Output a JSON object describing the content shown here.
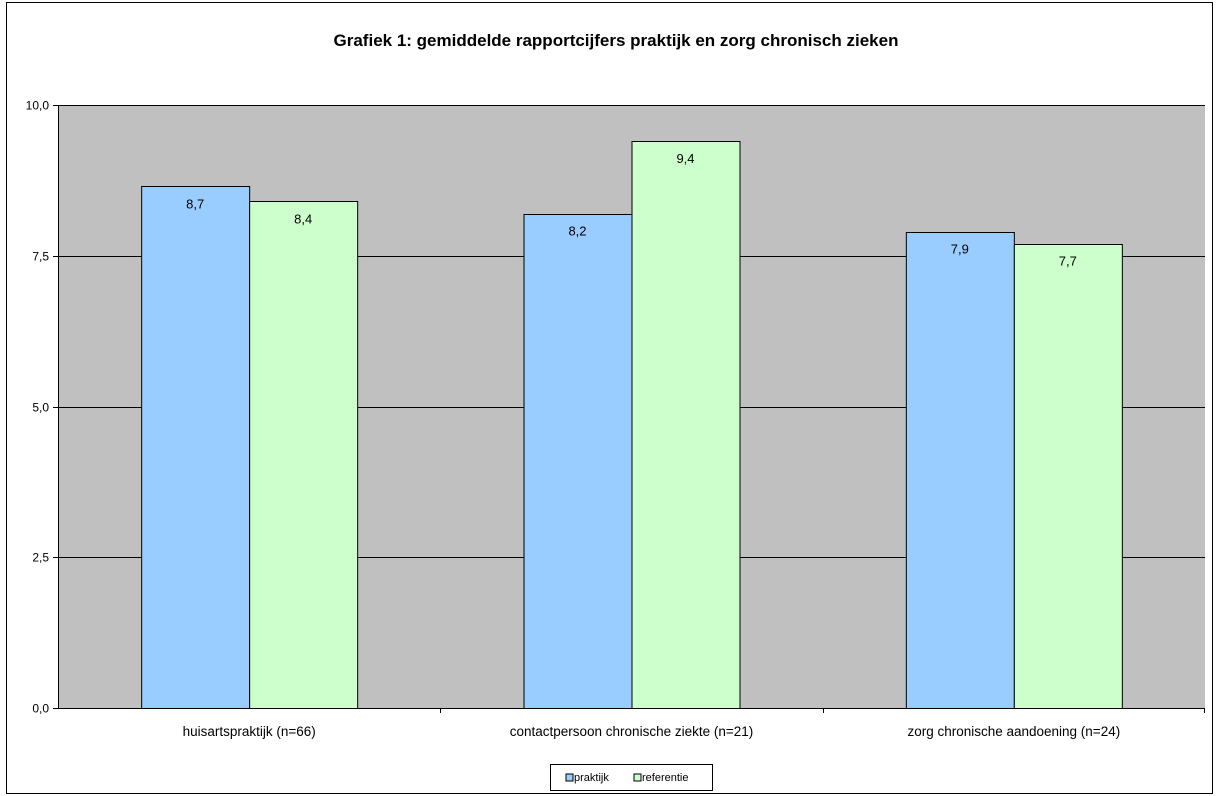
{
  "chart_data": {
    "type": "bar",
    "title": "Grafiek 1: gemiddelde rapportcijfers praktijk en zorg chronisch zieken",
    "xlabel": "",
    "ylabel": "",
    "ylim": [
      0,
      10
    ],
    "yticks": [
      0,
      2.5,
      5,
      7.5,
      10
    ],
    "ytick_labels": [
      "0,0",
      "2,5",
      "5,0",
      "7,5",
      "10,0"
    ],
    "grid": true,
    "legend_position": "bottom",
    "categories": [
      "huisartspraktijk (n=66)",
      "contactpersoon chronische ziekte (n=21)",
      "zorg chronische aandoening (n=24)"
    ],
    "series": [
      {
        "name": "praktijk",
        "color": "#99CCFF",
        "values": [
          8.65,
          8.2,
          7.9
        ],
        "labels": [
          "8,7",
          "8,2",
          "7,9"
        ]
      },
      {
        "name": "referentie",
        "color": "#CCFFCC",
        "values": [
          8.4,
          9.4,
          7.7
        ],
        "labels": [
          "8,4",
          "9,4",
          "7,7"
        ]
      }
    ],
    "plot_background": "#C0C0C0"
  }
}
